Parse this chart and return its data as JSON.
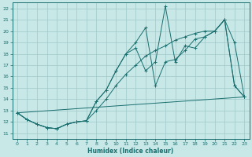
{
  "bg_color": "#c8e8e8",
  "grid_color": "#a0c8c8",
  "line_color": "#1a6e6e",
  "xlabel": "Humidex (Indice chaleur)",
  "xlim": [
    -0.5,
    23.5
  ],
  "ylim": [
    10.5,
    22.5
  ],
  "xticks": [
    0,
    1,
    2,
    3,
    4,
    5,
    6,
    7,
    8,
    9,
    10,
    11,
    12,
    13,
    14,
    15,
    16,
    17,
    18,
    19,
    20,
    21,
    22,
    23
  ],
  "yticks": [
    11,
    12,
    13,
    14,
    15,
    16,
    17,
    18,
    19,
    20,
    21,
    22
  ],
  "series_flat": {
    "x": [
      0,
      23
    ],
    "y": [
      12.8,
      14.2
    ]
  },
  "series_smooth": {
    "x": [
      0,
      1,
      2,
      3,
      4,
      5,
      6,
      7,
      8,
      9,
      10,
      11,
      12,
      13,
      14,
      15,
      16,
      17,
      18,
      19,
      20,
      21,
      22,
      23
    ],
    "y": [
      12.8,
      12.2,
      11.8,
      11.5,
      11.4,
      11.8,
      12.0,
      12.1,
      13.0,
      14.0,
      15.2,
      16.2,
      17.0,
      17.8,
      18.3,
      18.7,
      19.2,
      19.5,
      19.8,
      20.0,
      20.0,
      21.0,
      15.2,
      14.2
    ]
  },
  "series_jagged1": {
    "x": [
      0,
      1,
      2,
      3,
      4,
      5,
      6,
      7,
      8,
      9,
      10,
      11,
      12,
      13,
      14,
      15,
      16,
      17,
      18,
      19,
      20,
      21,
      22,
      23
    ],
    "y": [
      12.8,
      12.2,
      11.8,
      11.5,
      11.4,
      11.8,
      12.0,
      12.1,
      13.8,
      14.8,
      16.5,
      18.0,
      18.5,
      16.5,
      17.3,
      22.2,
      17.3,
      18.7,
      18.5,
      19.5,
      20.0,
      21.0,
      19.0,
      14.2
    ]
  },
  "series_jagged2": {
    "x": [
      0,
      1,
      2,
      3,
      4,
      5,
      6,
      7,
      8,
      9,
      10,
      11,
      12,
      13,
      14,
      15,
      16,
      17,
      18,
      19,
      20,
      21,
      22,
      23
    ],
    "y": [
      12.8,
      12.2,
      11.8,
      11.5,
      11.4,
      11.8,
      12.0,
      12.1,
      13.8,
      14.8,
      16.5,
      18.0,
      19.0,
      20.3,
      15.2,
      17.3,
      17.5,
      18.3,
      19.3,
      19.5,
      20.0,
      21.0,
      15.2,
      14.2
    ]
  }
}
